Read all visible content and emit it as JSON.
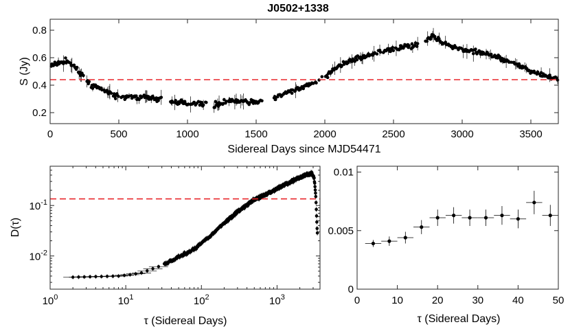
{
  "chart_data": [
    {
      "id": "lightcurve",
      "type": "scatter",
      "title": "J0502+1338",
      "xlabel": "Sidereal Days since MJD54471",
      "ylabel": "S (Jy)",
      "xlim": [
        0,
        3700
      ],
      "ylim": [
        0.12,
        0.88
      ],
      "xticks": [
        0,
        500,
        1000,
        1500,
        2000,
        2500,
        3000,
        3500
      ],
      "xtick_labels": [
        "0",
        "500",
        "1000",
        "1500",
        "2000",
        "2500",
        "3000",
        "3500"
      ],
      "yticks": [
        0.2,
        0.4,
        0.6,
        0.8
      ],
      "ytick_labels": [
        "0.2",
        "0.4",
        "0.6",
        "0.8"
      ],
      "reference_line": 0.44,
      "reference_color": "#e8262b",
      "trend": [
        [
          0,
          0.54
        ],
        [
          60,
          0.56
        ],
        [
          120,
          0.58
        ],
        [
          180,
          0.53
        ],
        [
          240,
          0.46
        ],
        [
          300,
          0.4
        ],
        [
          400,
          0.36
        ],
        [
          450,
          0.33
        ],
        [
          550,
          0.31
        ],
        [
          700,
          0.31
        ],
        [
          800,
          0.3
        ],
        [
          850,
          0.28
        ],
        [
          1000,
          0.27
        ],
        [
          1200,
          0.26
        ],
        [
          1300,
          0.28
        ],
        [
          1500,
          0.28
        ],
        [
          1600,
          0.28
        ],
        [
          1700,
          0.34
        ],
        [
          1800,
          0.37
        ],
        [
          1900,
          0.41
        ],
        [
          2000,
          0.46
        ],
        [
          2100,
          0.54
        ],
        [
          2200,
          0.58
        ],
        [
          2300,
          0.61
        ],
        [
          2400,
          0.64
        ],
        [
          2500,
          0.66
        ],
        [
          2600,
          0.68
        ],
        [
          2700,
          0.7
        ],
        [
          2780,
          0.76
        ],
        [
          2850,
          0.72
        ],
        [
          2950,
          0.67
        ],
        [
          3100,
          0.64
        ],
        [
          3250,
          0.61
        ],
        [
          3400,
          0.55
        ],
        [
          3500,
          0.5
        ],
        [
          3600,
          0.47
        ],
        [
          3700,
          0.45
        ]
      ],
      "gaps": [
        [
          810,
          870
        ],
        [
          1140,
          1190
        ],
        [
          1545,
          1620
        ],
        [
          2680,
          2730
        ]
      ]
    },
    {
      "id": "structure_function",
      "type": "scatter",
      "xlabel": "τ (Sidereal Days)",
      "ylabel": "D(τ)",
      "xscale": "log",
      "yscale": "log",
      "xlim": [
        1,
        3700
      ],
      "ylim": [
        0.0022,
        0.6
      ],
      "xticks": [
        1,
        10,
        100,
        1000
      ],
      "xtick_labels": [
        [
          "10",
          "0"
        ],
        [
          "10",
          "1"
        ],
        [
          "10",
          "2"
        ],
        [
          "10",
          "3"
        ]
      ],
      "yticks": [
        0.01,
        0.1
      ],
      "ytick_labels": [
        [
          "10",
          "-2"
        ],
        [
          "10",
          "-1"
        ]
      ],
      "reference_line": 0.135,
      "reference_color": "#e8262b",
      "trend": [
        [
          2,
          0.0038
        ],
        [
          4,
          0.0039
        ],
        [
          8,
          0.004
        ],
        [
          12,
          0.0043
        ],
        [
          16,
          0.0046
        ],
        [
          20,
          0.0052
        ],
        [
          30,
          0.0065
        ],
        [
          40,
          0.008
        ],
        [
          60,
          0.011
        ],
        [
          80,
          0.0135
        ],
        [
          100,
          0.018
        ],
        [
          150,
          0.03
        ],
        [
          200,
          0.045
        ],
        [
          300,
          0.075
        ],
        [
          500,
          0.13
        ],
        [
          800,
          0.18
        ],
        [
          1200,
          0.25
        ],
        [
          1800,
          0.33
        ],
        [
          2500,
          0.42
        ],
        [
          2900,
          0.43
        ],
        [
          3100,
          0.35
        ],
        [
          3250,
          0.15
        ],
        [
          3350,
          0.05
        ],
        [
          3420,
          0.026
        ]
      ]
    },
    {
      "id": "structure_function_zoom",
      "type": "scatter",
      "xlabel": "τ (Sidereal Days)",
      "ylabel": "",
      "xlim": [
        0,
        50
      ],
      "ylim": [
        0,
        0.0105
      ],
      "xticks": [
        0,
        10,
        20,
        30,
        40,
        50
      ],
      "xtick_labels": [
        "0",
        "10",
        "20",
        "30",
        "40",
        "50"
      ],
      "yticks": [
        0,
        0.005,
        0.01
      ],
      "ytick_labels": [
        "0",
        "0.005",
        "0.01"
      ],
      "x": [
        4,
        8,
        12,
        16,
        20,
        24,
        28,
        32,
        36,
        40,
        44,
        48
      ],
      "y": [
        0.0039,
        0.0041,
        0.0044,
        0.0053,
        0.0061,
        0.0063,
        0.0061,
        0.0061,
        0.0063,
        0.006,
        0.0074,
        0.0063
      ],
      "yerr": [
        0.0003,
        0.0004,
        0.0005,
        0.0006,
        0.0007,
        0.0007,
        0.0007,
        0.0007,
        0.0008,
        0.0008,
        0.001,
        0.0009
      ],
      "xerr": [
        2,
        2,
        2,
        2,
        2,
        2,
        2,
        2,
        2,
        2,
        2,
        2
      ]
    }
  ]
}
